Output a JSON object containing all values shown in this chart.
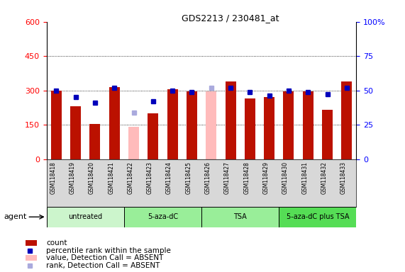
{
  "title": "GDS2213 / 230481_at",
  "samples": [
    "GSM118418",
    "GSM118419",
    "GSM118420",
    "GSM118421",
    "GSM118422",
    "GSM118423",
    "GSM118424",
    "GSM118425",
    "GSM118426",
    "GSM118427",
    "GSM118428",
    "GSM118429",
    "GSM118430",
    "GSM118431",
    "GSM118432",
    "GSM118433"
  ],
  "count_values": [
    300,
    230,
    155,
    315,
    null,
    200,
    305,
    295,
    null,
    340,
    265,
    270,
    295,
    295,
    215,
    340
  ],
  "count_absent": [
    null,
    null,
    null,
    null,
    140,
    null,
    null,
    null,
    295,
    null,
    null,
    null,
    null,
    null,
    null,
    null
  ],
  "rank_values_pct": [
    50,
    45,
    41,
    52,
    null,
    42,
    50,
    49,
    null,
    52,
    49,
    46,
    50,
    49,
    47,
    52
  ],
  "rank_absent_pct": [
    null,
    null,
    null,
    null,
    34,
    null,
    null,
    null,
    52,
    null,
    null,
    null,
    null,
    null,
    null,
    null
  ],
  "groups": [
    {
      "label": "untreated",
      "indices": [
        0,
        1,
        2,
        3
      ],
      "color": "#ccf5cc"
    },
    {
      "label": "5-aza-dC",
      "indices": [
        4,
        5,
        6,
        7
      ],
      "color": "#99ee99"
    },
    {
      "label": "TSA",
      "indices": [
        8,
        9,
        10,
        11
      ],
      "color": "#99ee99"
    },
    {
      "label": "5-aza-dC plus TSA",
      "indices": [
        12,
        13,
        14,
        15
      ],
      "color": "#55dd55"
    }
  ],
  "ylim_left": [
    0,
    600
  ],
  "ylim_right": [
    0,
    100
  ],
  "yticks_left": [
    0,
    150,
    300,
    450,
    600
  ],
  "yticks_right": [
    0,
    25,
    50,
    75,
    100
  ],
  "bar_color_present": "#bb1100",
  "bar_color_absent": "#ffbbbb",
  "dot_color_present": "#0000bb",
  "dot_color_absent": "#aaaadd",
  "background_color": "#ffffff"
}
